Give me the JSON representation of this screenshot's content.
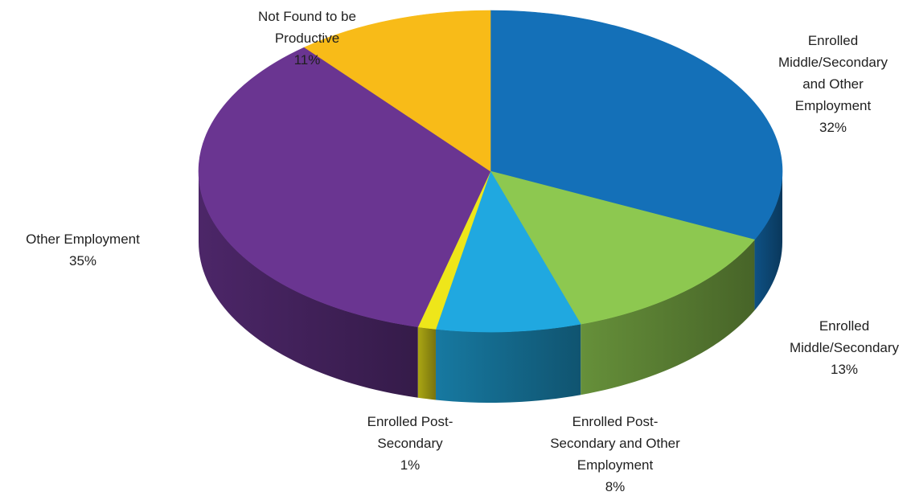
{
  "chart_data": {
    "type": "pie",
    "title": "",
    "slices": [
      {
        "label": [
          "Enrolled",
          "Middle/Secondary",
          "and Other",
          "Employment"
        ],
        "value": 32,
        "display": "32%",
        "color": "#1470B8"
      },
      {
        "label": [
          "Enrolled",
          "Middle/Secondary"
        ],
        "value": 13,
        "display": "13%",
        "color": "#8DC850"
      },
      {
        "label": [
          "Enrolled Post-",
          "Secondary and Other",
          "Employment"
        ],
        "value": 8,
        "display": "8%",
        "color": "#20A8E0"
      },
      {
        "label": [
          "Enrolled Post-",
          "Secondary"
        ],
        "value": 1,
        "display": "1%",
        "color": "#EEE61A"
      },
      {
        "label": [
          "Other Employment"
        ],
        "value": 35,
        "display": "35%",
        "color": "#6A3591"
      },
      {
        "label": [
          "Not Found to be",
          "Productive"
        ],
        "value": 11,
        "display": "11%",
        "color": "#F8BB18"
      }
    ]
  }
}
